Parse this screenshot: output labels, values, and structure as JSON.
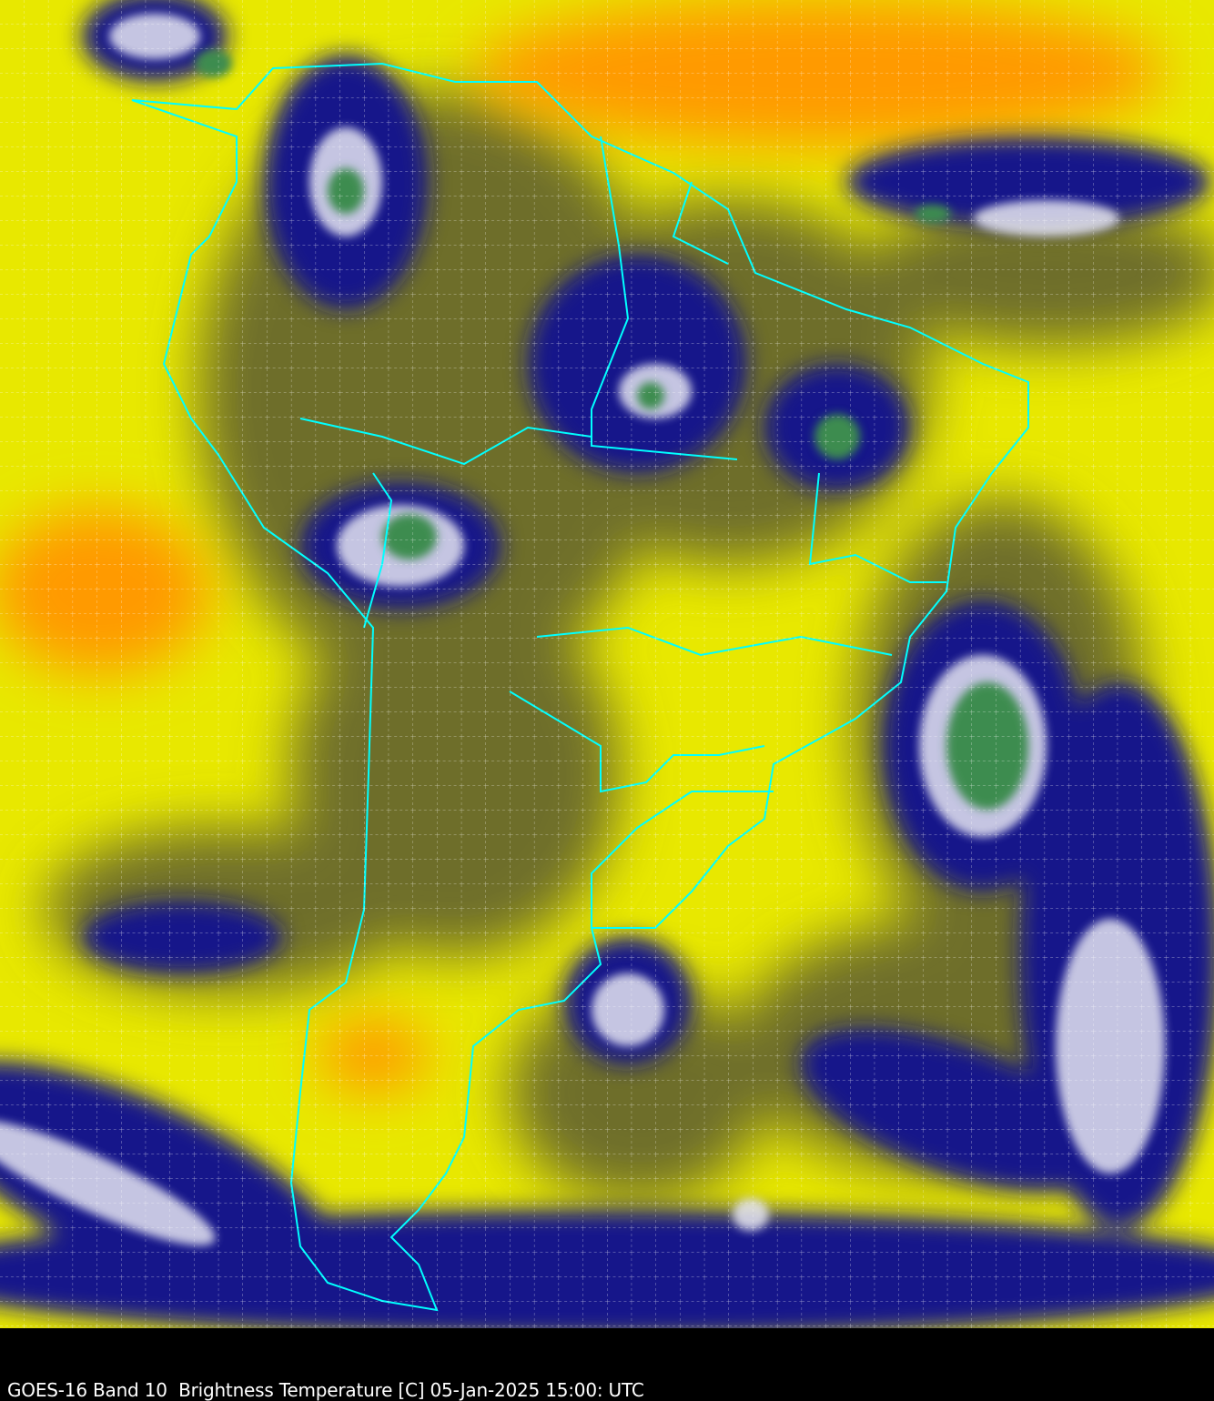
{
  "caption": "GOES-16 Band 10  Brightness Temperature [C] 05-Jan-2025 15:00: UTC",
  "colors": {
    "background": "#000000",
    "warm_orange": "#ff8c00",
    "dry_yellow": "#ffff00",
    "olive": "#6e6e28",
    "cold_navy": "#0a0a78",
    "cold_white": "#e6e6f0",
    "coldest_green": "#3c8c50",
    "boundaries": "#00ffff",
    "grid": "#ffffff",
    "caption_text": "#ffffff"
  },
  "map": {
    "boundaries_icon": "country-state-outlines",
    "grid": "lat-lon dashed graticule"
  }
}
